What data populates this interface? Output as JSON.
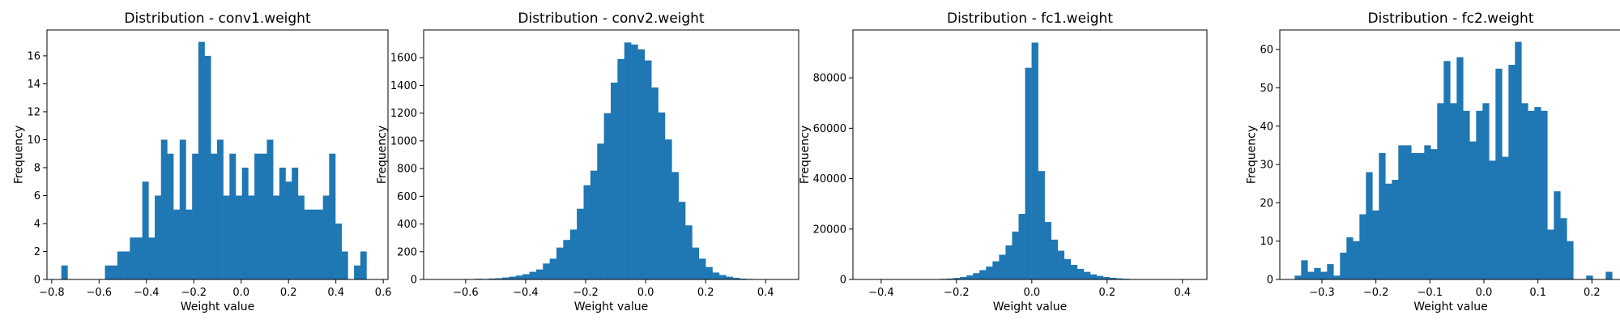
{
  "figure": {
    "background": "#ffffff",
    "bar_color": "#1f77b4"
  },
  "chart_data": [
    {
      "type": "bar",
      "title": "Distribution - conv1.weight",
      "xlabel": "Weight value",
      "ylabel": "Frequency",
      "xlim": [
        -0.82,
        0.62
      ],
      "ylim": [
        0,
        17.85
      ],
      "xticks": [
        -0.8,
        -0.6,
        -0.4,
        -0.2,
        0.0,
        0.2,
        0.4,
        0.6
      ],
      "xtick_labels": [
        "−0.8",
        "−0.6",
        "−0.4",
        "−0.2",
        "0.0",
        "0.2",
        "0.4",
        "0.6"
      ],
      "yticks": [
        0,
        2,
        4,
        6,
        8,
        10,
        12,
        14,
        16
      ],
      "ytick_labels": [
        "0",
        "2",
        "4",
        "6",
        "8",
        "10",
        "12",
        "14",
        "16"
      ],
      "bins": {
        "start": -0.7594,
        "width": 0.0263
      },
      "values": [
        1,
        0,
        0,
        0,
        0,
        0,
        0,
        1,
        1,
        2,
        2,
        3,
        3,
        7,
        3,
        6,
        10,
        9,
        5,
        10,
        5,
        9,
        17,
        16,
        9,
        10,
        6,
        9,
        6,
        8,
        6,
        9,
        9,
        10,
        6,
        8,
        7,
        8,
        6,
        5,
        5,
        5,
        6,
        9,
        4,
        2,
        0,
        1,
        2
      ]
    },
    {
      "type": "bar",
      "title": "Distribution - conv2.weight",
      "xlabel": "Weight value",
      "ylabel": "Frequency",
      "xlim": [
        -0.74,
        0.51
      ],
      "ylim": [
        0,
        1800
      ],
      "xticks": [
        -0.6,
        -0.4,
        -0.2,
        0.0,
        0.2,
        0.4
      ],
      "xtick_labels": [
        "−0.6",
        "−0.4",
        "−0.2",
        "0.0",
        "0.2",
        "0.4"
      ],
      "yticks": [
        0,
        200,
        400,
        600,
        800,
        1000,
        1200,
        1400,
        1600
      ],
      "ytick_labels": [
        "0",
        "200",
        "400",
        "600",
        "800",
        "1000",
        "1200",
        "1400",
        "1600"
      ],
      "bins": {
        "start": -0.6814,
        "width": 0.0226
      },
      "values": [
        1,
        0,
        2,
        3,
        3,
        5,
        4,
        7,
        9,
        14,
        20,
        28,
        38,
        55,
        72,
        115,
        150,
        230,
        285,
        360,
        510,
        680,
        785,
        980,
        1200,
        1420,
        1590,
        1710,
        1695,
        1660,
        1580,
        1385,
        1205,
        1010,
        775,
        560,
        390,
        230,
        150,
        90,
        50,
        32,
        20,
        12,
        6,
        4,
        2,
        1,
        1
      ]
    },
    {
      "type": "bar",
      "title": "Distribution - fc1.weight",
      "xlabel": "Weight value",
      "ylabel": "Frequency",
      "xlim": [
        -0.475,
        0.465
      ],
      "ylim": [
        0,
        99000
      ],
      "xticks": [
        -0.4,
        -0.2,
        0.0,
        0.2,
        0.4
      ],
      "xtick_labels": [
        "−0.4",
        "−0.2",
        "0.0",
        "0.2",
        "0.4"
      ],
      "yticks": [
        0,
        20000,
        40000,
        60000,
        80000
      ],
      "ytick_labels": [
        "0",
        "20000",
        "40000",
        "60000",
        "80000"
      ],
      "bins": {
        "start": -0.433,
        "width": 0.0173
      },
      "values": [
        5,
        8,
        10,
        15,
        20,
        30,
        45,
        60,
        90,
        130,
        180,
        260,
        380,
        600,
        1000,
        1600,
        2500,
        3700,
        5100,
        7200,
        9800,
        13500,
        19000,
        26000,
        84000,
        94000,
        43000,
        22800,
        15800,
        11400,
        8100,
        5800,
        4200,
        3000,
        2000,
        1400,
        950,
        650,
        420,
        280,
        180,
        120,
        80,
        50,
        30,
        20,
        12,
        8,
        5
      ]
    },
    {
      "type": "bar",
      "title": "Distribution - fc2.weight",
      "xlabel": "Weight value",
      "ylabel": "Frequency",
      "xlim": [
        -0.378,
        0.255
      ],
      "ylim": [
        0,
        65.1
      ],
      "xticks": [
        -0.3,
        -0.2,
        -0.1,
        0.0,
        0.1,
        0.2
      ],
      "xtick_labels": [
        "−0.3",
        "−0.2",
        "−0.1",
        "0.0",
        "0.1",
        "0.2"
      ],
      "yticks": [
        0,
        10,
        20,
        30,
        40,
        50,
        60
      ],
      "ytick_labels": [
        "0",
        "10",
        "20",
        "30",
        "40",
        "50",
        "60"
      ],
      "bins": {
        "start": -0.3505,
        "width": 0.012
      },
      "values": [
        1,
        5,
        2,
        3,
        2,
        4,
        1,
        7,
        11,
        10,
        17,
        28,
        18,
        33,
        25,
        26,
        35,
        35,
        33,
        33,
        35,
        34,
        46,
        57,
        46,
        58,
        44,
        36,
        44,
        46,
        31,
        55,
        32,
        56,
        62,
        46,
        44,
        45,
        44,
        13,
        23,
        16,
        10,
        0,
        0,
        1,
        0,
        0,
        2
      ]
    }
  ]
}
